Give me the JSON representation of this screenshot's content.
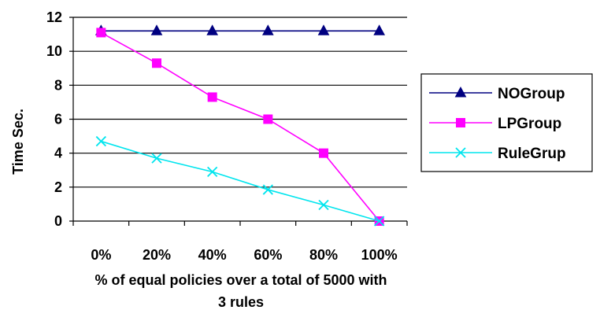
{
  "chart_data": {
    "type": "line",
    "categories": [
      "0%",
      "20%",
      "40%",
      "60%",
      "80%",
      "100%"
    ],
    "series": [
      {
        "name": "NOGroup",
        "values": [
          11.2,
          11.2,
          11.2,
          11.2,
          11.2,
          11.2
        ],
        "color": "#000080",
        "marker": "triangle"
      },
      {
        "name": "LPGroup",
        "values": [
          11.1,
          9.3,
          7.3,
          6.0,
          4.0,
          0.0
        ],
        "color": "#ff00ff",
        "marker": "square"
      },
      {
        "name": "RuleGrup",
        "values": [
          4.7,
          3.7,
          2.9,
          1.85,
          0.95,
          0.0
        ],
        "color": "#00e5ee",
        "marker": "x"
      }
    ],
    "ylabel": "Time  Sec.",
    "xlabel_line1": "% of equal policies over a total of 5000 with",
    "xlabel_line2": "3 rules",
    "ylim": [
      0,
      12
    ],
    "yticks": [
      0,
      2,
      4,
      6,
      8,
      10,
      12
    ],
    "grid": true,
    "legend": "right"
  }
}
